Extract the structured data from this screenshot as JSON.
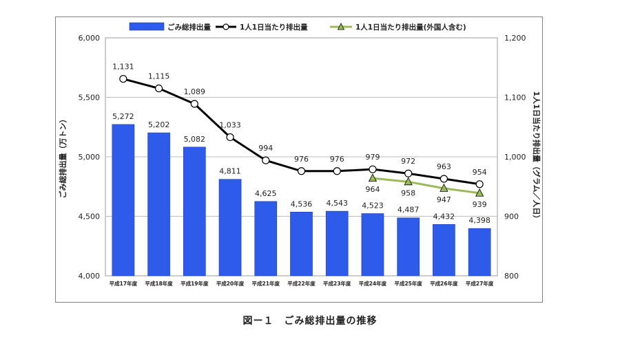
{
  "caption": "図ー１　ごみ総排出量の推移",
  "chart_data": {
    "type": "bar+line",
    "categories": [
      "平成17年度",
      "平成18年度",
      "平成19年度",
      "平成20年度",
      "平成21年度",
      "平成22年度",
      "平成23年度",
      "平成24年度",
      "平成25年度",
      "平成26年度",
      "平成27年度"
    ],
    "bar_series": {
      "name": "ごみ総排出量",
      "values": [
        5272,
        5202,
        5082,
        4811,
        4625,
        4536,
        4543,
        4523,
        4487,
        4432,
        4398
      ],
      "labels": [
        "5,272",
        "5,202",
        "5,082",
        "4,811",
        "4,625",
        "4,536",
        "4,543",
        "4,523",
        "4,487",
        "4,432",
        "4,398"
      ],
      "color": "#2f5bea"
    },
    "line_series": [
      {
        "name": "1人1日当たり排出量",
        "start_index": 0,
        "values": [
          1131,
          1115,
          1089,
          1033,
          994,
          976,
          976,
          979,
          972,
          963,
          954
        ],
        "labels": [
          "1,131",
          "1,115",
          "1,089",
          "1,033",
          "994",
          "976",
          "976",
          "979",
          "972",
          "963",
          "954"
        ],
        "color": "#000000",
        "marker": "circle"
      },
      {
        "name": "1人1日当たり排出量(外国人含む)",
        "start_index": 7,
        "values": [
          964,
          958,
          947,
          939
        ],
        "labels": [
          "964",
          "958",
          "947",
          "939"
        ],
        "color": "#9bbb59",
        "marker": "triangle"
      }
    ],
    "ylabel_left": "ごみ総排出量（万トン）",
    "ylabel_right": "1人1日当たり排出量（グラム／人日）",
    "ylim_left": [
      4000,
      6000
    ],
    "yticks_left": [
      "4,000",
      "4,500",
      "5,000",
      "5,500",
      "6,000"
    ],
    "ylim_right": [
      800,
      1200
    ],
    "yticks_right": [
      "800",
      "900",
      "1,000",
      "1,100",
      "1,200"
    ],
    "grid": true,
    "legend_position": "top"
  }
}
